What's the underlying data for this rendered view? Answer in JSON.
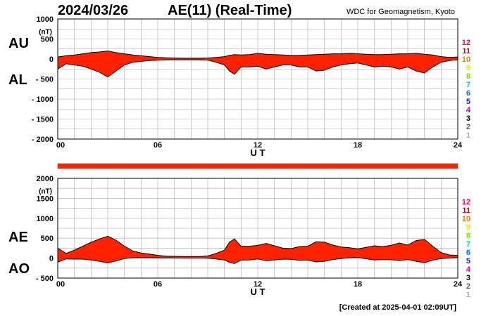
{
  "header": {
    "date": "2024/03/26",
    "title": "AE(11) (Real-Time)",
    "source": "WDC for Geomagnetism, Kyoto"
  },
  "footer": {
    "created": "[Created at 2025-04-01 02:09UT]"
  },
  "station_legend": {
    "labels": [
      "12",
      "11",
      "10",
      "9",
      "8",
      "7",
      "6",
      "5",
      "4",
      "3",
      "2",
      "1"
    ],
    "colors": [
      "#e8007a",
      "#e00000",
      "#f08000",
      "#e8e800",
      "#80e000",
      "#00c0c0",
      "#0070ff",
      "#2020c0",
      "#c000c0",
      "#000000",
      "#606060",
      "#b0b0b0"
    ]
  },
  "chart_data": [
    {
      "type": "area",
      "panel": "AU/AL",
      "series_labels": [
        "AU",
        "AL"
      ],
      "ylabel": "(nT)",
      "xlabel": "U T",
      "xlim": [
        0,
        24
      ],
      "ylim": [
        -2000,
        1000
      ],
      "x_ticks": [
        0,
        6,
        12,
        18,
        24
      ],
      "x_tick_labels": [
        "00",
        "06",
        "12",
        "18",
        "24"
      ],
      "y_ticks": [
        1000,
        500,
        0,
        -500,
        -1000,
        -1500,
        -2000
      ],
      "y_tick_labels": [
        "1000",
        "500",
        "0",
        "- 500",
        "- 1000",
        "- 1500",
        "- 2000"
      ],
      "grid": true,
      "fill_color": "#ff2200",
      "x": [
        0,
        0.5,
        1,
        1.5,
        2,
        2.5,
        3,
        3.5,
        4,
        4.5,
        5,
        5.5,
        6,
        6.5,
        7,
        7.5,
        8,
        8.5,
        9,
        9.5,
        10,
        10.3,
        10.6,
        11,
        11.5,
        12,
        12.5,
        13,
        13.5,
        14,
        14.5,
        15,
        15.5,
        16,
        16.5,
        17,
        17.5,
        18,
        18.5,
        19,
        19.5,
        20,
        20.5,
        21,
        21.5,
        22,
        22.5,
        23,
        23.5,
        24
      ],
      "AU": [
        50,
        80,
        100,
        130,
        160,
        175,
        200,
        160,
        130,
        100,
        80,
        60,
        40,
        30,
        25,
        20,
        20,
        20,
        25,
        40,
        60,
        90,
        110,
        100,
        110,
        140,
        120,
        110,
        100,
        90,
        90,
        100,
        110,
        120,
        130,
        130,
        140,
        130,
        120,
        110,
        110,
        120,
        130,
        130,
        140,
        120,
        100,
        60,
        40,
        50
      ],
      "AL": [
        -250,
        -120,
        -150,
        -180,
        -250,
        -330,
        -450,
        -300,
        -150,
        -80,
        -60,
        -40,
        -30,
        -20,
        -20,
        -20,
        -20,
        -20,
        -30,
        -80,
        -150,
        -300,
        -380,
        -200,
        -200,
        -180,
        -250,
        -200,
        -150,
        -150,
        -200,
        -200,
        -300,
        -280,
        -200,
        -150,
        -120,
        -100,
        -150,
        -200,
        -180,
        -200,
        -250,
        -200,
        -300,
        -350,
        -200,
        -80,
        -40,
        -20
      ]
    },
    {
      "type": "area",
      "panel": "AE/AO",
      "series_labels": [
        "AE",
        "AO"
      ],
      "ylabel": "(nT)",
      "xlabel": "U T",
      "xlim": [
        0,
        24
      ],
      "ylim": [
        -500,
        2000
      ],
      "x_ticks": [
        0,
        6,
        12,
        18,
        24
      ],
      "x_tick_labels": [
        "00",
        "06",
        "12",
        "18",
        "24"
      ],
      "y_ticks": [
        2000,
        1500,
        1000,
        500,
        0,
        -500
      ],
      "y_tick_labels": [
        "2000",
        "1500",
        "1000",
        "500",
        "0",
        "- 500"
      ],
      "grid": true,
      "fill_color": "#ff2200",
      "x": [
        0,
        0.5,
        1,
        1.5,
        2,
        2.5,
        3,
        3.5,
        4,
        4.5,
        5,
        5.5,
        6,
        6.5,
        7,
        7.5,
        8,
        8.5,
        9,
        9.5,
        10,
        10.3,
        10.6,
        11,
        11.5,
        12,
        12.5,
        13,
        13.5,
        14,
        14.5,
        15,
        15.5,
        16,
        16.5,
        17,
        17.5,
        18,
        18.5,
        19,
        19.5,
        20,
        20.5,
        21,
        21.5,
        22,
        22.5,
        23,
        23.5,
        24
      ],
      "AE": [
        250,
        120,
        200,
        300,
        400,
        480,
        550,
        450,
        300,
        180,
        130,
        100,
        70,
        50,
        45,
        40,
        40,
        40,
        55,
        120,
        200,
        400,
        480,
        300,
        300,
        320,
        370,
        310,
        250,
        240,
        290,
        300,
        410,
        400,
        330,
        280,
        260,
        230,
        270,
        310,
        290,
        320,
        380,
        330,
        440,
        470,
        300,
        140,
        80,
        70
      ],
      "AO": [
        -100,
        -20,
        -25,
        -25,
        -45,
        -80,
        -120,
        -70,
        -10,
        10,
        10,
        10,
        5,
        5,
        3,
        0,
        0,
        0,
        -3,
        -20,
        -45,
        -105,
        -135,
        -50,
        -45,
        -20,
        -65,
        -45,
        -25,
        -30,
        -55,
        -50,
        -95,
        -80,
        -35,
        -10,
        10,
        15,
        -15,
        -45,
        -35,
        -40,
        -60,
        -35,
        -80,
        -115,
        -50,
        -10,
        0,
        15
      ]
    }
  ]
}
